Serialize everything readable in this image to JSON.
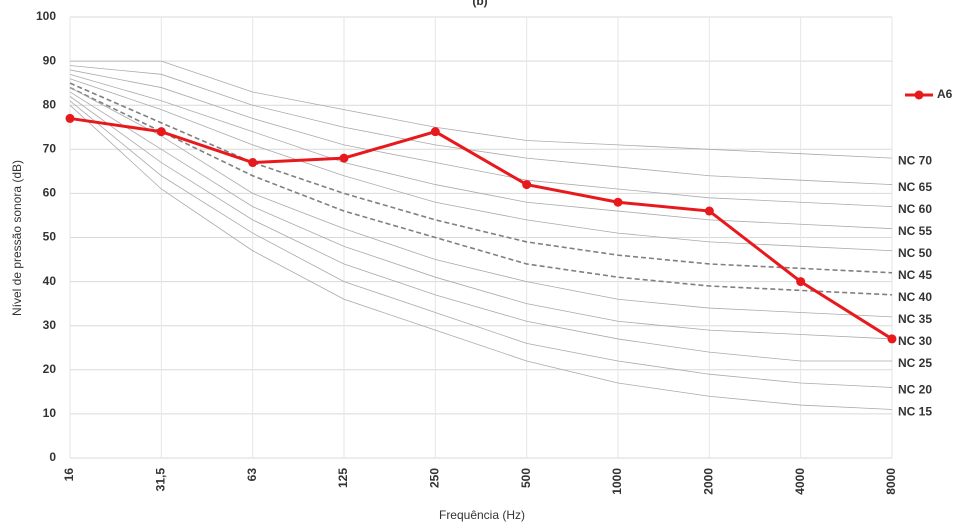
{
  "chart_data": {
    "type": "line",
    "title": "(b)",
    "x_label": "Frequência (Hz)",
    "y_label": "Nível de pressão sonora  (dB)",
    "categories": [
      "16",
      "31,5",
      "63",
      "125",
      "250",
      "500",
      "1000",
      "2000",
      "4000",
      "8000"
    ],
    "ylim": [
      0,
      100
    ],
    "yticks": [
      0,
      10,
      20,
      30,
      40,
      50,
      60,
      70,
      80,
      90,
      100
    ],
    "grid": true,
    "legend": "right",
    "series": [
      {
        "name": "A6",
        "color": "#e8191c",
        "style": "solid",
        "markers": true,
        "in_legend": true,
        "values": [
          77,
          74,
          67,
          68,
          74,
          62,
          58,
          56,
          40,
          27
        ]
      },
      {
        "name": "NC 70",
        "color": "#aaaaaa",
        "style": "solid",
        "end_label": true,
        "values": [
          90,
          90,
          83,
          79,
          75,
          72,
          71,
          70,
          69,
          68
        ]
      },
      {
        "name": "NC 65",
        "color": "#aaaaaa",
        "style": "solid",
        "end_label": true,
        "values": [
          89,
          87,
          80,
          75,
          71,
          68,
          66,
          64,
          63,
          62
        ]
      },
      {
        "name": "NC 60",
        "color": "#aaaaaa",
        "style": "solid",
        "end_label": true,
        "values": [
          88,
          84,
          77,
          71,
          67,
          63,
          61,
          59,
          58,
          57
        ]
      },
      {
        "name": "NC 55",
        "color": "#aaaaaa",
        "style": "solid",
        "end_label": true,
        "values": [
          87,
          81,
          74,
          67,
          62,
          58,
          56,
          54,
          53,
          52
        ]
      },
      {
        "name": "NC 50",
        "color": "#aaaaaa",
        "style": "solid",
        "end_label": true,
        "values": [
          86,
          79,
          71,
          64,
          58,
          54,
          51,
          49,
          48,
          47
        ]
      },
      {
        "name": "NC 45",
        "color": "#808080",
        "style": "dashed",
        "end_label": true,
        "values": [
          85,
          76,
          67,
          60,
          54,
          49,
          46,
          44,
          43,
          42
        ]
      },
      {
        "name": "NC 40",
        "color": "#808080",
        "style": "dashed",
        "end_label": true,
        "values": [
          84,
          74,
          64,
          56,
          50,
          44,
          41,
          39,
          38,
          37
        ]
      },
      {
        "name": "NC 35",
        "color": "#aaaaaa",
        "style": "solid",
        "end_label": true,
        "values": [
          84,
          73,
          60,
          52,
          45,
          40,
          36,
          34,
          33,
          32
        ]
      },
      {
        "name": "NC 30",
        "color": "#aaaaaa",
        "style": "solid",
        "end_label": true,
        "values": [
          83,
          70,
          57,
          48,
          41,
          35,
          31,
          29,
          28,
          27
        ]
      },
      {
        "name": "NC 25",
        "color": "#aaaaaa",
        "style": "solid",
        "end_label": true,
        "values": [
          82,
          67,
          54,
          44,
          37,
          31,
          27,
          24,
          22,
          22
        ]
      },
      {
        "name": "NC 20",
        "color": "#aaaaaa",
        "style": "solid",
        "end_label": true,
        "values": [
          81,
          64,
          51,
          40,
          33,
          26,
          22,
          19,
          17,
          16
        ]
      },
      {
        "name": "NC 15",
        "color": "#aaaaaa",
        "style": "solid",
        "end_label": true,
        "values": [
          80,
          61,
          47,
          36,
          29,
          22,
          17,
          14,
          12,
          11
        ]
      }
    ]
  }
}
